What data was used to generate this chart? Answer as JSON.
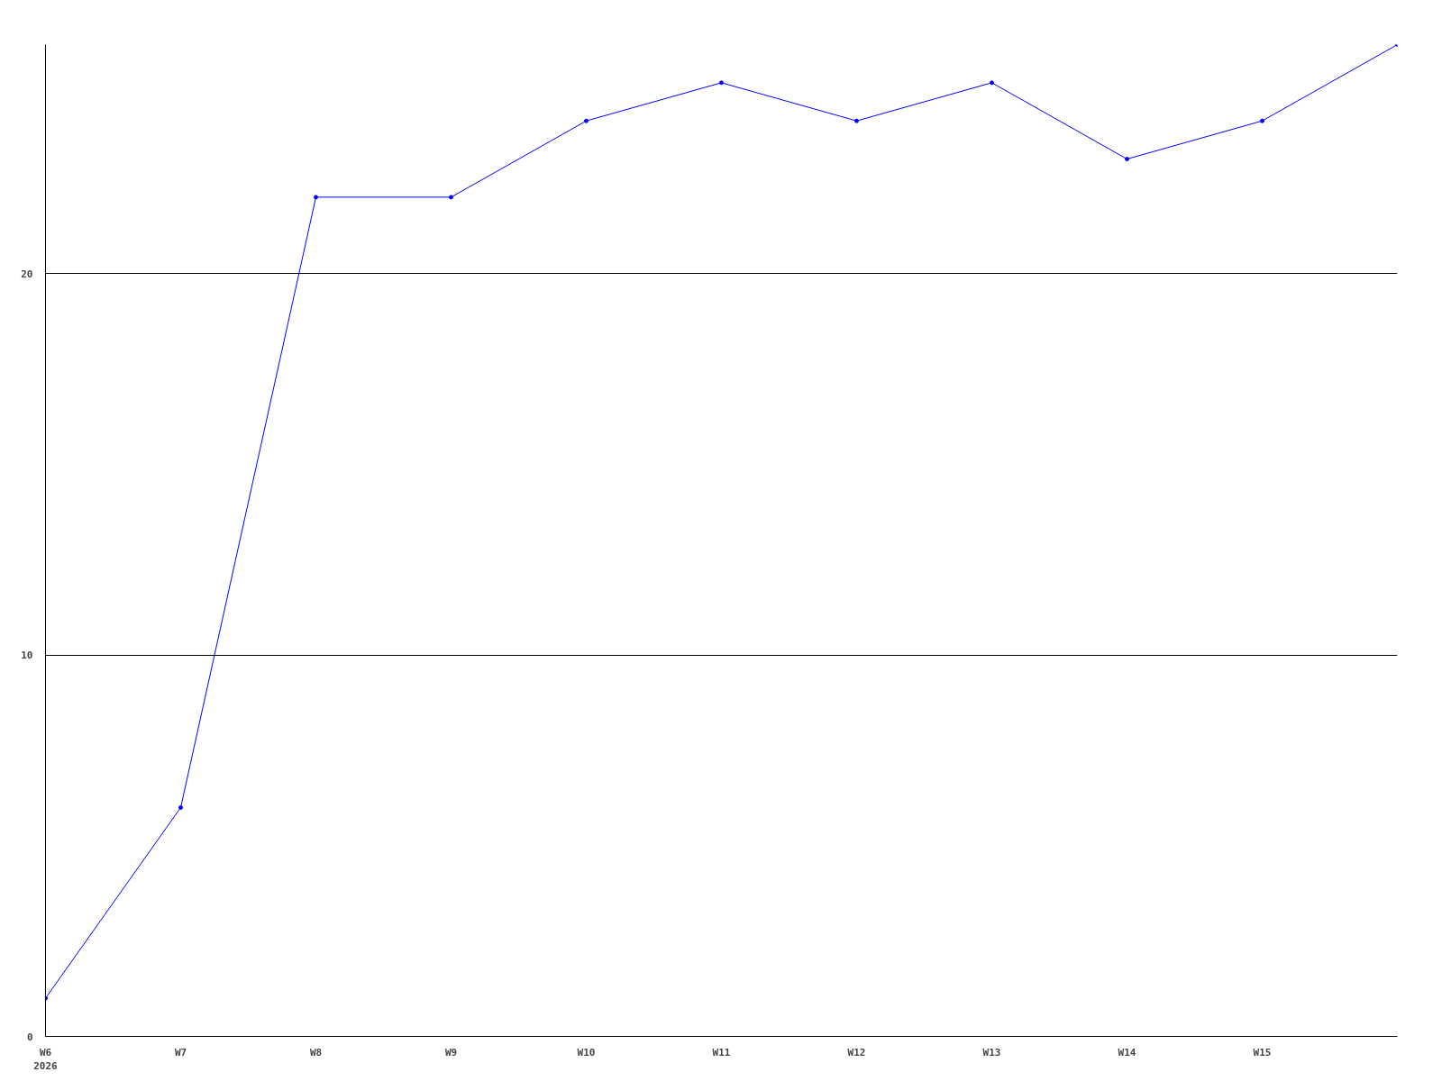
{
  "chart_data": {
    "type": "line",
    "categories": [
      "W6",
      "W7",
      "W8",
      "W9",
      "W10",
      "W11",
      "W12",
      "W13",
      "W14",
      "W15",
      null
    ],
    "series": [
      {
        "color": "#0000ff",
        "values": [
          1,
          6,
          22,
          22,
          24,
          25,
          24,
          25,
          23,
          24,
          26
        ]
      }
    ],
    "ylim": [
      0,
      26
    ],
    "yticks": [
      0,
      10,
      20
    ],
    "grid": "y",
    "marker": "circle",
    "line_style": "solid",
    "annotations": [
      "2026"
    ]
  }
}
